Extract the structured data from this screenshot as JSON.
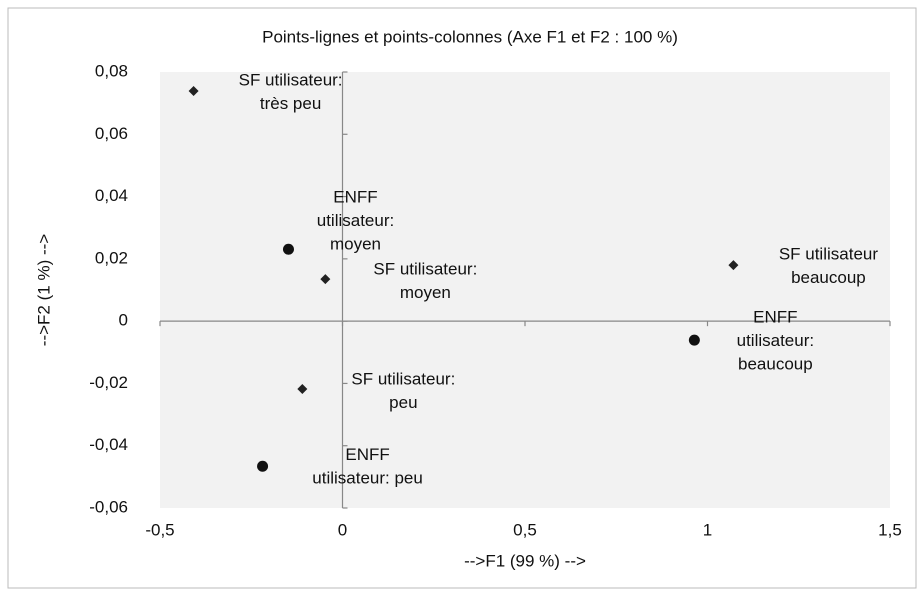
{
  "chart_data": {
    "type": "scatter",
    "title": "Points-lignes et points-colonnes (Axe F1 et F2 : 100 %)",
    "x_label": "-->F1 (99 %) -->",
    "y_label": "-->F2 (1 %) -->",
    "xlim": [
      -0.5,
      1.5
    ],
    "ylim": [
      -0.06,
      0.08
    ],
    "xticks": [
      {
        "value": -0.5,
        "label": "-0,5"
      },
      0,
      {
        "value": 0.5,
        "label": "0,5"
      },
      1,
      {
        "value": 1.5,
        "label": "1,5"
      }
    ],
    "yticks": [
      {
        "value": -0.06,
        "label": "-0,06"
      },
      {
        "value": -0.04,
        "label": "-0,04"
      },
      {
        "value": -0.02,
        "label": "-0,02"
      },
      0,
      {
        "value": 0.02,
        "label": "0,02"
      },
      {
        "value": 0.04,
        "label": "0,04"
      },
      {
        "value": 0.06,
        "label": "0,06"
      },
      {
        "value": 0.08,
        "label": "0,08"
      }
    ],
    "series": [
      {
        "marker": "diamond",
        "color": "#222222",
        "x": [
          -0.408,
          -0.047,
          1.071,
          -0.11
        ],
        "values": [
          0.0739,
          0.0135,
          0.018,
          -0.0218
        ],
        "labels": [
          [
            "SF utilisateur:",
            "très peu"
          ],
          [
            "SF utilisateur:",
            "moyen"
          ],
          [
            "SF utilisateur",
            "beaucoup"
          ],
          [
            "SF utilisateur:",
            "peu"
          ]
        ]
      },
      {
        "marker": "circle",
        "color": "#111111",
        "x": [
          -0.148,
          0.964,
          -0.219
        ],
        "values": [
          0.0231,
          -0.0061,
          -0.0466
        ],
        "labels": [
          [
            "ENFF",
            "utilisateur:",
            "moyen"
          ],
          [
            "ENFF",
            "utilisateur:",
            "beaucoup"
          ],
          [
            "ENFF",
            "utilisateur: peu"
          ]
        ]
      }
    ]
  }
}
